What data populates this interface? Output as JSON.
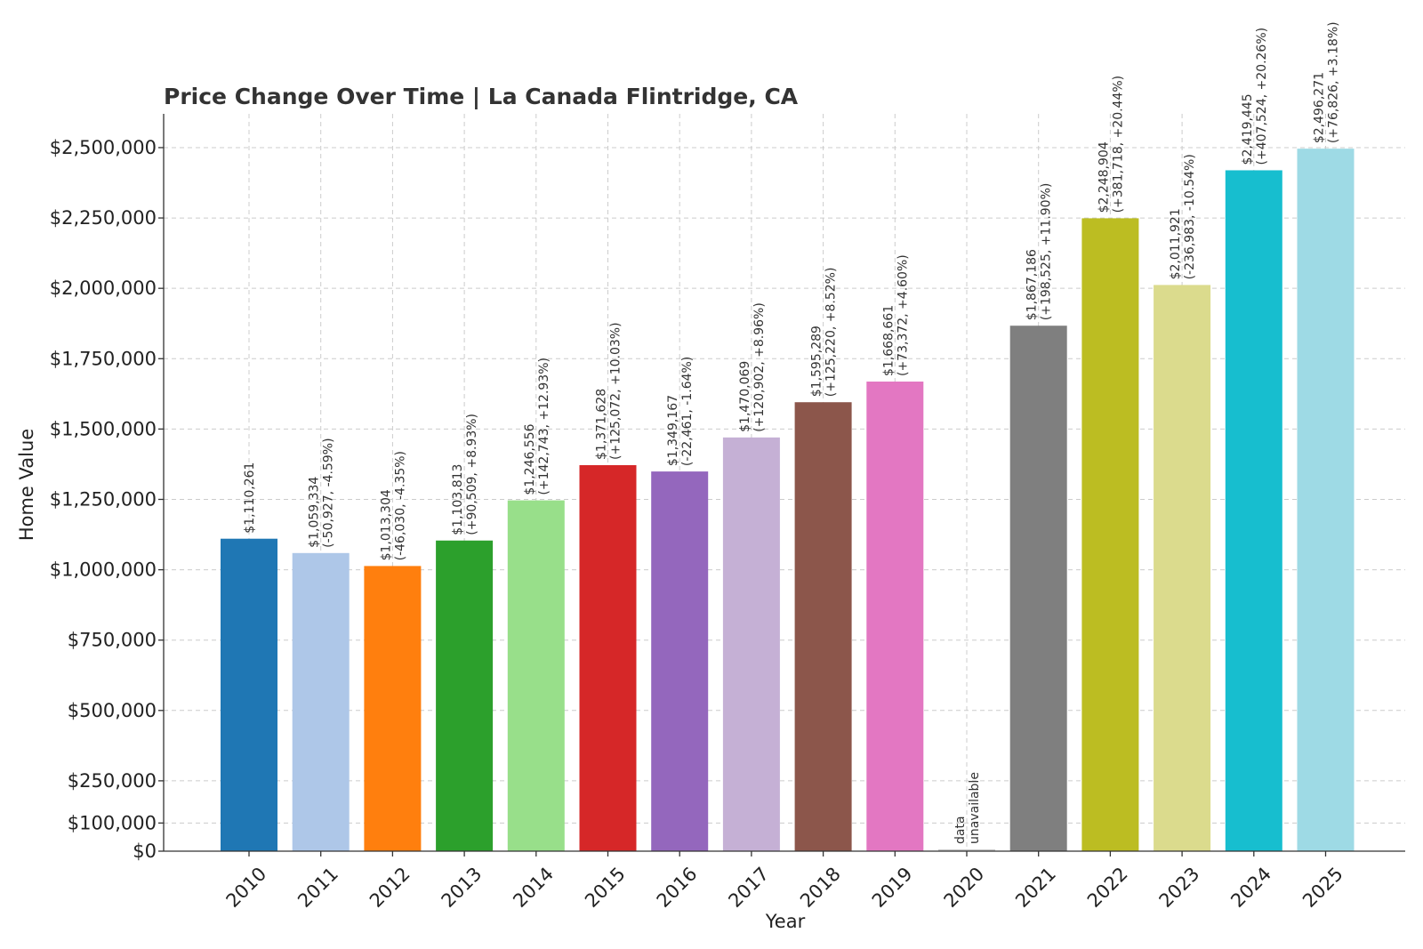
{
  "chart_data": {
    "type": "bar",
    "title": "Price Change Over Time | La Canada Flintridge, CA",
    "xlabel": "Year",
    "ylabel": "Home Value",
    "ylim": [
      0,
      2620000
    ],
    "grid": true,
    "yticks": [
      0,
      100000,
      250000,
      500000,
      750000,
      1000000,
      1250000,
      1500000,
      1750000,
      2000000,
      2250000,
      2500000
    ],
    "ytick_labels": [
      "$0",
      "$100,000",
      "$250,000",
      "$500,000",
      "$750,000",
      "$1,000,000",
      "$1,250,000",
      "$1,500,000",
      "$1,750,000",
      "$2,000,000",
      "$2,250,000",
      "$2,500,000"
    ],
    "categories": [
      "2010",
      "2011",
      "2012",
      "2013",
      "2014",
      "2015",
      "2016",
      "2017",
      "2018",
      "2019",
      "2020",
      "2021",
      "2022",
      "2023",
      "2024",
      "2025"
    ],
    "values": [
      1110261,
      1059334,
      1013304,
      1103813,
      1246556,
      1371628,
      1349167,
      1470069,
      1595289,
      1668661,
      0,
      1867186,
      2248904,
      2011921,
      2419445,
      2496271
    ],
    "colors": [
      "#1f77b4",
      "#aec7e8",
      "#ff7f0e",
      "#2ca02c",
      "#98df8a",
      "#d62728",
      "#9467bd",
      "#c5b0d5",
      "#8c564b",
      "#e377c2",
      "#c7c7c7",
      "#7f7f7f",
      "#bcbd22",
      "#dbdb8d",
      "#17becf",
      "#9edae5"
    ],
    "bar_labels": [
      [
        "$1,110,261"
      ],
      [
        "$1,059,334",
        "(-50,927, -4.59%)"
      ],
      [
        "$1,013,304",
        "(-46,030, -4.35%)"
      ],
      [
        "$1,103,813",
        "(+90,509, +8.93%)"
      ],
      [
        "$1,246,556",
        "(+142,743, +12.93%)"
      ],
      [
        "$1,371,628",
        "(+125,072, +10.03%)"
      ],
      [
        "$1,349,167",
        "(-22,461, -1.64%)"
      ],
      [
        "$1,470,069",
        "(+120,902, +8.96%)"
      ],
      [
        "$1,595,289",
        "(+125,220, +8.52%)"
      ],
      [
        "$1,668,661",
        "(+73,372, +4.60%)"
      ],
      [
        "data",
        "unavailable"
      ],
      [
        "$1,867,186",
        "(+198,525, +11.90%)"
      ],
      [
        "$2,248,904",
        "(+381,718, +20.44%)"
      ],
      [
        "$2,011,921",
        "(-236,983, -10.54%)"
      ],
      [
        "$2,419,445",
        "(+407,524, +20.26%)"
      ],
      [
        "$2,496,271",
        "(+76,826, +3.18%)"
      ]
    ]
  }
}
